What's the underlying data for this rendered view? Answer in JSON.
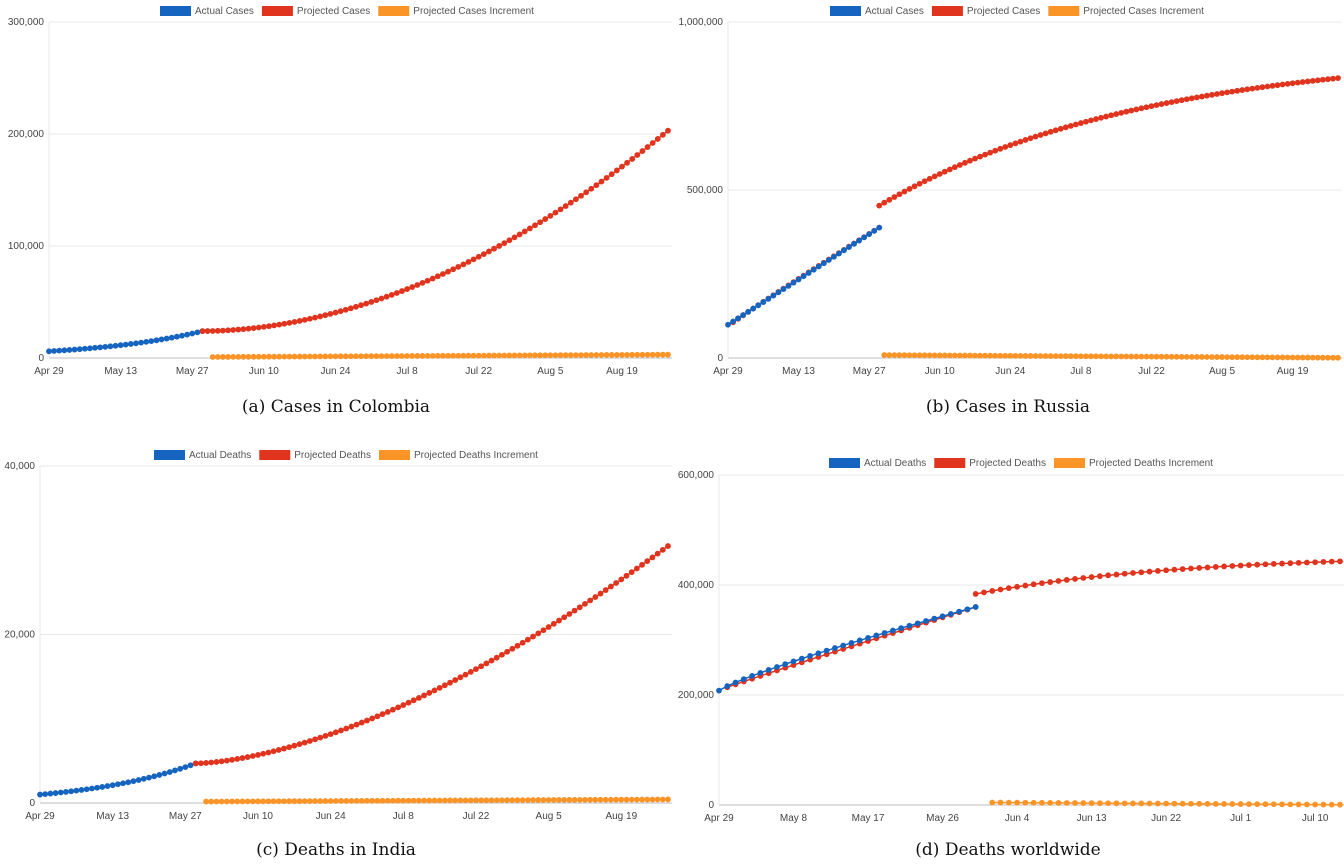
{
  "colors": {
    "actual": "#1565c0",
    "projected": "#e0341e",
    "increment": "#fb9426",
    "grid": "#e8e8e8",
    "axis": "#bdbdbd"
  },
  "chart_data": [
    {
      "type": "scatter",
      "caption": "(a)  Cases in Colombia",
      "legend": [
        "Actual Cases",
        "Projected Cases",
        "Projected Cases Increment"
      ],
      "y_ticks": [
        "0",
        "100,000",
        "200,000",
        "300,000"
      ],
      "ylim": [
        0,
        300000
      ],
      "x_ticks": [
        "Apr 29",
        "May 13",
        "May 27",
        "Jun 10",
        "Jun 24",
        "Jul 8",
        "Jul 22",
        "Aug 5",
        "Aug 19"
      ],
      "x_range": [
        "2020-04-29",
        "2020-08-28"
      ],
      "actual": {
        "start": "2020-04-29",
        "end": "2020-05-29",
        "v0": 6000,
        "v1": 24000,
        "shape": "exp"
      },
      "projected": {
        "start": "2020-05-29",
        "end": "2020-08-28",
        "v0": 24000,
        "v1": 203000,
        "shape": "pow",
        "p": 1.9
      },
      "increment": {
        "start": "2020-05-31",
        "end": "2020-08-28",
        "v0": 900,
        "v1": 3000,
        "shape": "linear"
      }
    },
    {
      "type": "scatter",
      "caption": "(b)  Cases in Russia",
      "legend": [
        "Actual Cases",
        "Projected Cases",
        "Projected Cases Increment"
      ],
      "y_ticks": [
        "0",
        "500,000",
        "1,000,000"
      ],
      "ylim": [
        0,
        1000000
      ],
      "x_ticks": [
        "Apr 29",
        "May 13",
        "May 27",
        "Jun 10",
        "Jun 24",
        "Jul 8",
        "Jul 22",
        "Aug 5",
        "Aug 19"
      ],
      "x_range": [
        "2020-04-29",
        "2020-08-28"
      ],
      "actual": {
        "start": "2020-04-29",
        "end": "2020-05-29",
        "v0": 99000,
        "v1": 388000,
        "shape": "linear"
      },
      "projected": {
        "start": "2020-04-29",
        "end": "2020-08-28",
        "v0": 99000,
        "v1": 833000,
        "shape": "sat",
        "k": 2.3,
        "skip_until": "2020-05-29"
      },
      "projected_overlap": {
        "start": "2020-04-30",
        "end": "2020-05-29",
        "v0": 106000,
        "v1": 388000
      },
      "increment": {
        "start": "2020-05-30",
        "end": "2020-08-28",
        "v0": 8700,
        "v1": 700,
        "shape": "linear"
      }
    },
    {
      "type": "scatter",
      "caption": "(c)  Deaths in India",
      "legend": [
        "Actual Deaths",
        "Projected Deaths",
        "Projected Deaths Increment"
      ],
      "y_ticks": [
        "0",
        "20,000",
        "40,000"
      ],
      "ylim": [
        0,
        40000
      ],
      "x_ticks": [
        "Apr 29",
        "May 13",
        "May 27",
        "Jun 10",
        "Jun 24",
        "Jul 8",
        "Jul 22",
        "Aug 5",
        "Aug 19"
      ],
      "x_range": [
        "2020-04-29",
        "2020-08-28"
      ],
      "actual": {
        "start": "2020-04-29",
        "end": "2020-05-29",
        "v0": 1000,
        "v1": 4700,
        "shape": "exp"
      },
      "projected": {
        "start": "2020-05-29",
        "end": "2020-08-28",
        "v0": 4700,
        "v1": 30500,
        "shape": "pow",
        "p": 1.6
      },
      "increment": {
        "start": "2020-05-31",
        "end": "2020-08-28",
        "v0": 170,
        "v1": 420,
        "shape": "linear"
      }
    },
    {
      "type": "scatter",
      "caption": "(d)  Deaths worldwide",
      "legend": [
        "Actual Deaths",
        "Projected Deaths",
        "Projected Deaths Increment"
      ],
      "y_ticks": [
        "0",
        "200,000",
        "400,000",
        "600,000"
      ],
      "ylim": [
        0,
        600000
      ],
      "x_ticks": [
        "Apr 29",
        "May 8",
        "May 17",
        "May 26",
        "Jun 4",
        "Jun 13",
        "Jun 22",
        "Jul 1",
        "Jul 10"
      ],
      "x_range": [
        "2020-04-29",
        "2020-07-13"
      ],
      "actual": {
        "start": "2020-04-29",
        "end": "2020-05-30",
        "v0": 208000,
        "v1": 360000,
        "shape": "sqrtish"
      },
      "projected": {
        "start": "2020-04-29",
        "end": "2020-07-13",
        "v0": 208000,
        "v1": 443000,
        "shape": "sat",
        "k": 3.0,
        "skip_until": "2020-05-30"
      },
      "projected_overlap": {
        "start": "2020-04-30",
        "end": "2020-05-30",
        "v0": 214000,
        "v1": 360000
      },
      "increment": {
        "start": "2020-06-01",
        "end": "2020-07-13",
        "v0": 4500,
        "v1": 600,
        "shape": "linear"
      }
    }
  ]
}
